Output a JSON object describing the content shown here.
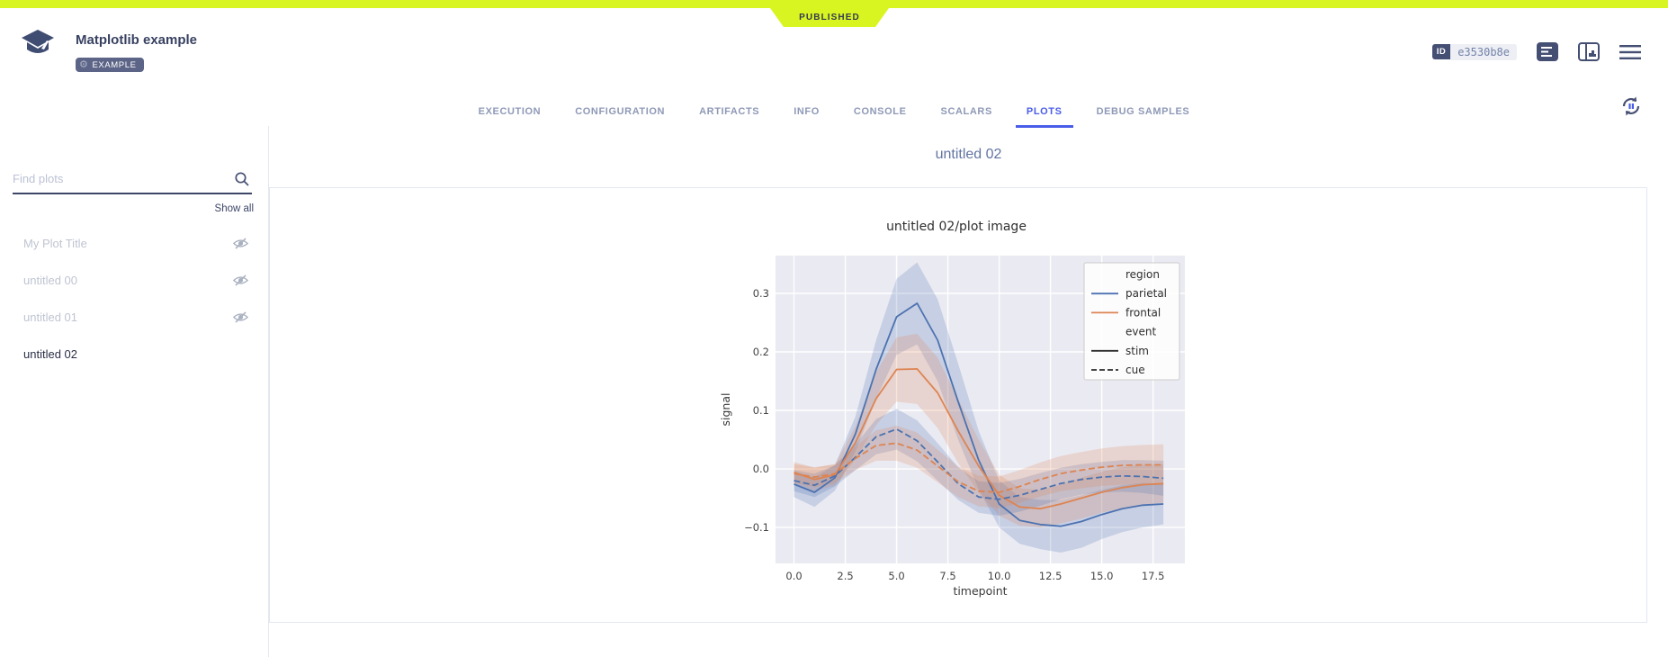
{
  "top_bar": {
    "status": "PUBLISHED",
    "color": "#d9f521"
  },
  "header": {
    "title": "Matplotlib example",
    "tag": "EXAMPLE",
    "id_label": "ID",
    "id_value": "e3530b8e",
    "tabs": [
      {
        "label": "EXECUTION",
        "active": false
      },
      {
        "label": "CONFIGURATION",
        "active": false
      },
      {
        "label": "ARTIFACTS",
        "active": false
      },
      {
        "label": "INFO",
        "active": false
      },
      {
        "label": "CONSOLE",
        "active": false
      },
      {
        "label": "SCALARS",
        "active": false
      },
      {
        "label": "PLOTS",
        "active": true
      },
      {
        "label": "DEBUG SAMPLES",
        "active": false
      }
    ],
    "accent_color": "#4a5de8",
    "slate_color": "#384161"
  },
  "sidebar": {
    "search": {
      "placeholder": "Find plots",
      "value": ""
    },
    "show_all": "Show all",
    "items": [
      {
        "label": "My Plot Title",
        "hidden": true
      },
      {
        "label": "untitled 00",
        "hidden": true
      },
      {
        "label": "untitled 01",
        "hidden": true
      },
      {
        "label": "untitled 02",
        "hidden": false
      }
    ]
  },
  "main": {
    "group_title": "untitled 02"
  },
  "chart_data": {
    "type": "line",
    "title": "untitled 02/plot image",
    "xlabel": "timepoint",
    "ylabel": "signal",
    "xlim": [
      -0.9,
      19.05
    ],
    "ylim": [
      -0.1615,
      0.3646
    ],
    "xticks": [
      0,
      2.5,
      5,
      7.5,
      10,
      12.5,
      15,
      17.5
    ],
    "xtick_labels": [
      "0.0",
      "2.5",
      "5.0",
      "7.5",
      "10.0",
      "12.5",
      "15.0",
      "17.5"
    ],
    "yticks": [
      -0.1,
      0,
      0.1,
      0.2,
      0.3
    ],
    "ytick_labels": [
      "−0.1",
      "0.0",
      "0.1",
      "0.2",
      "0.3"
    ],
    "grid": true,
    "plot_background": "#eaeaf2",
    "x": [
      0,
      1,
      2,
      3,
      4,
      5,
      6,
      7,
      8,
      9,
      10,
      11,
      12,
      13,
      14,
      15,
      16,
      17,
      18
    ],
    "series": [
      {
        "name": "parietal-stim",
        "color": "#4c72b0",
        "dash": false,
        "values": [
          -0.026,
          -0.04,
          -0.015,
          0.06,
          0.17,
          0.26,
          0.283,
          0.22,
          0.115,
          0.015,
          -0.06,
          -0.088,
          -0.095,
          -0.098,
          -0.09,
          -0.078,
          -0.068,
          -0.062,
          -0.06
        ],
        "band": [
          0.022,
          0.025,
          0.022,
          0.03,
          0.05,
          0.065,
          0.07,
          0.07,
          0.065,
          0.05,
          0.04,
          0.04,
          0.042,
          0.045,
          0.045,
          0.042,
          0.04,
          0.038,
          0.035
        ]
      },
      {
        "name": "frontal-stim",
        "color": "#dd8452",
        "dash": false,
        "values": [
          -0.006,
          -0.018,
          -0.01,
          0.045,
          0.12,
          0.17,
          0.171,
          0.13,
          0.065,
          0.005,
          -0.045,
          -0.065,
          -0.068,
          -0.06,
          -0.05,
          -0.04,
          -0.032,
          -0.027,
          -0.025
        ],
        "band": [
          0.018,
          0.02,
          0.018,
          0.028,
          0.045,
          0.055,
          0.06,
          0.06,
          0.055,
          0.045,
          0.035,
          0.032,
          0.032,
          0.033,
          0.035,
          0.035,
          0.035,
          0.034,
          0.033
        ]
      },
      {
        "name": "parietal-cue",
        "color": "#4c72b0",
        "dash": true,
        "values": [
          -0.02,
          -0.028,
          -0.012,
          0.02,
          0.055,
          0.068,
          0.048,
          0.012,
          -0.025,
          -0.048,
          -0.052,
          -0.045,
          -0.035,
          -0.025,
          -0.018,
          -0.014,
          -0.012,
          -0.013,
          -0.016
        ],
        "band": [
          0.018,
          0.02,
          0.018,
          0.022,
          0.03,
          0.035,
          0.035,
          0.032,
          0.028,
          0.027,
          0.028,
          0.028,
          0.028,
          0.027,
          0.026,
          0.026,
          0.027,
          0.028,
          0.03
        ]
      },
      {
        "name": "frontal-cue",
        "color": "#dd8452",
        "dash": true,
        "values": [
          -0.008,
          -0.014,
          -0.008,
          0.018,
          0.04,
          0.044,
          0.032,
          0.005,
          -0.022,
          -0.038,
          -0.04,
          -0.03,
          -0.018,
          -0.008,
          -0.002,
          0.003,
          0.006,
          0.007,
          0.007
        ],
        "band": [
          0.016,
          0.017,
          0.016,
          0.02,
          0.026,
          0.03,
          0.03,
          0.028,
          0.026,
          0.026,
          0.027,
          0.028,
          0.029,
          0.03,
          0.031,
          0.032,
          0.033,
          0.034,
          0.035
        ]
      }
    ],
    "legend": {
      "position": "upper right",
      "entries": [
        {
          "label": "region",
          "type": "header"
        },
        {
          "label": "parietal",
          "type": "line",
          "color": "#4c72b0",
          "dash": false
        },
        {
          "label": "frontal",
          "type": "line",
          "color": "#dd8452",
          "dash": false
        },
        {
          "label": "event",
          "type": "header"
        },
        {
          "label": "stim",
          "type": "line",
          "color": "#2b2b2b",
          "dash": false
        },
        {
          "label": "cue",
          "type": "line",
          "color": "#2b2b2b",
          "dash": true
        }
      ]
    }
  }
}
